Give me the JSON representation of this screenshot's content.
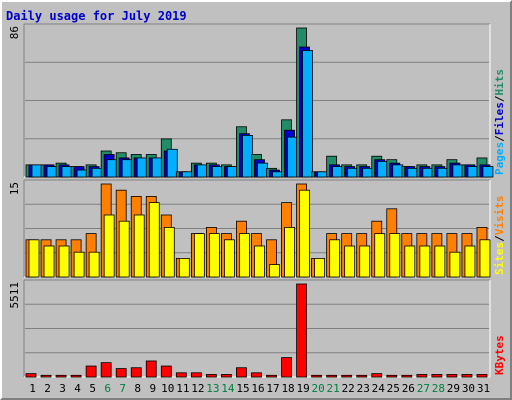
{
  "chart_data": {
    "type": "bar",
    "title": "Daily usage for July 2019",
    "categories": [
      "1",
      "2",
      "3",
      "4",
      "5",
      "6",
      "7",
      "8",
      "9",
      "10",
      "11",
      "12",
      "13",
      "14",
      "15",
      "16",
      "17",
      "18",
      "19",
      "20",
      "21",
      "22",
      "23",
      "24",
      "25",
      "26",
      "27",
      "28",
      "29",
      "30",
      "31"
    ],
    "weekend_days": [
      "6",
      "7",
      "13",
      "14",
      "20",
      "21",
      "27",
      "28"
    ],
    "colors": {
      "hits": "#228b68",
      "files": "#0000cc",
      "pages": "#00b0ff",
      "visits": "#ff8000",
      "sites": "#ffff00",
      "kbytes": "#ff0000",
      "weekday_label": "#000000",
      "weekend_label": "#008040",
      "plot_bg": "#c0c0c0",
      "gridline": "#808080"
    },
    "panels": [
      {
        "name": "hits-files-pages",
        "ymax_label": "86",
        "ylim": [
          0,
          86
        ],
        "grid": true,
        "side_labels": [
          "Pages",
          "Files",
          "Hits"
        ],
        "series": [
          {
            "name": "Hits",
            "key": "hits",
            "values": [
              7,
              7,
              8,
              6,
              7,
              15,
              14,
              13,
              13,
              22,
              3,
              8,
              8,
              7,
              29,
              13,
              5,
              33,
              86,
              3,
              12,
              7,
              7,
              12,
              10,
              6,
              7,
              7,
              10,
              7,
              11
            ]
          },
          {
            "name": "Files",
            "key": "files",
            "values": [
              7,
              7,
              7,
              6,
              6,
              13,
              11,
              11,
              11,
              15,
              3,
              7,
              7,
              6,
              25,
              10,
              4,
              27,
              75,
              3,
              7,
              6,
              6,
              10,
              8,
              6,
              6,
              6,
              8,
              7,
              7
            ]
          },
          {
            "name": "Pages",
            "key": "pages",
            "values": [
              7,
              6,
              6,
              4,
              5,
              10,
              10,
              11,
              11,
              16,
              3,
              7,
              6,
              6,
              24,
              8,
              3,
              23,
              73,
              3,
              6,
              5,
              5,
              9,
              7,
              5,
              5,
              5,
              7,
              6,
              6
            ]
          }
        ]
      },
      {
        "name": "visits-sites",
        "ymax_label": "15",
        "ylim": [
          0,
          15
        ],
        "grid": true,
        "side_labels": [
          "Sites",
          "Visits"
        ],
        "series": [
          {
            "name": "Visits",
            "key": "visits",
            "values": [
              6,
              6,
              6,
              6,
              7,
              15,
              14,
              13,
              13,
              10,
              3,
              7,
              8,
              7,
              9,
              7,
              6,
              12,
              15,
              3,
              7,
              7,
              7,
              9,
              11,
              7,
              7,
              7,
              7,
              7,
              8
            ]
          },
          {
            "name": "Sites",
            "key": "sites",
            "values": [
              6,
              5,
              5,
              4,
              4,
              10,
              9,
              10,
              12,
              8,
              3,
              7,
              7,
              6,
              7,
              5,
              2,
              8,
              14,
              3,
              6,
              5,
              5,
              7,
              7,
              5,
              5,
              5,
              4,
              5,
              6
            ]
          }
        ]
      },
      {
        "name": "kbytes",
        "ymax_label": "5511",
        "ylim": [
          0,
          5511
        ],
        "grid": true,
        "side_labels": [
          "KBytes"
        ],
        "series": [
          {
            "name": "KBytes",
            "key": "kbytes",
            "values": [
              200,
              100,
              100,
              100,
              650,
              850,
              500,
              550,
              950,
              650,
              250,
              250,
              150,
              150,
              550,
              250,
              100,
              1150,
              5511,
              100,
              100,
              100,
              100,
              200,
              100,
              100,
              150,
              150,
              150,
              150,
              150
            ]
          }
        ]
      }
    ]
  }
}
